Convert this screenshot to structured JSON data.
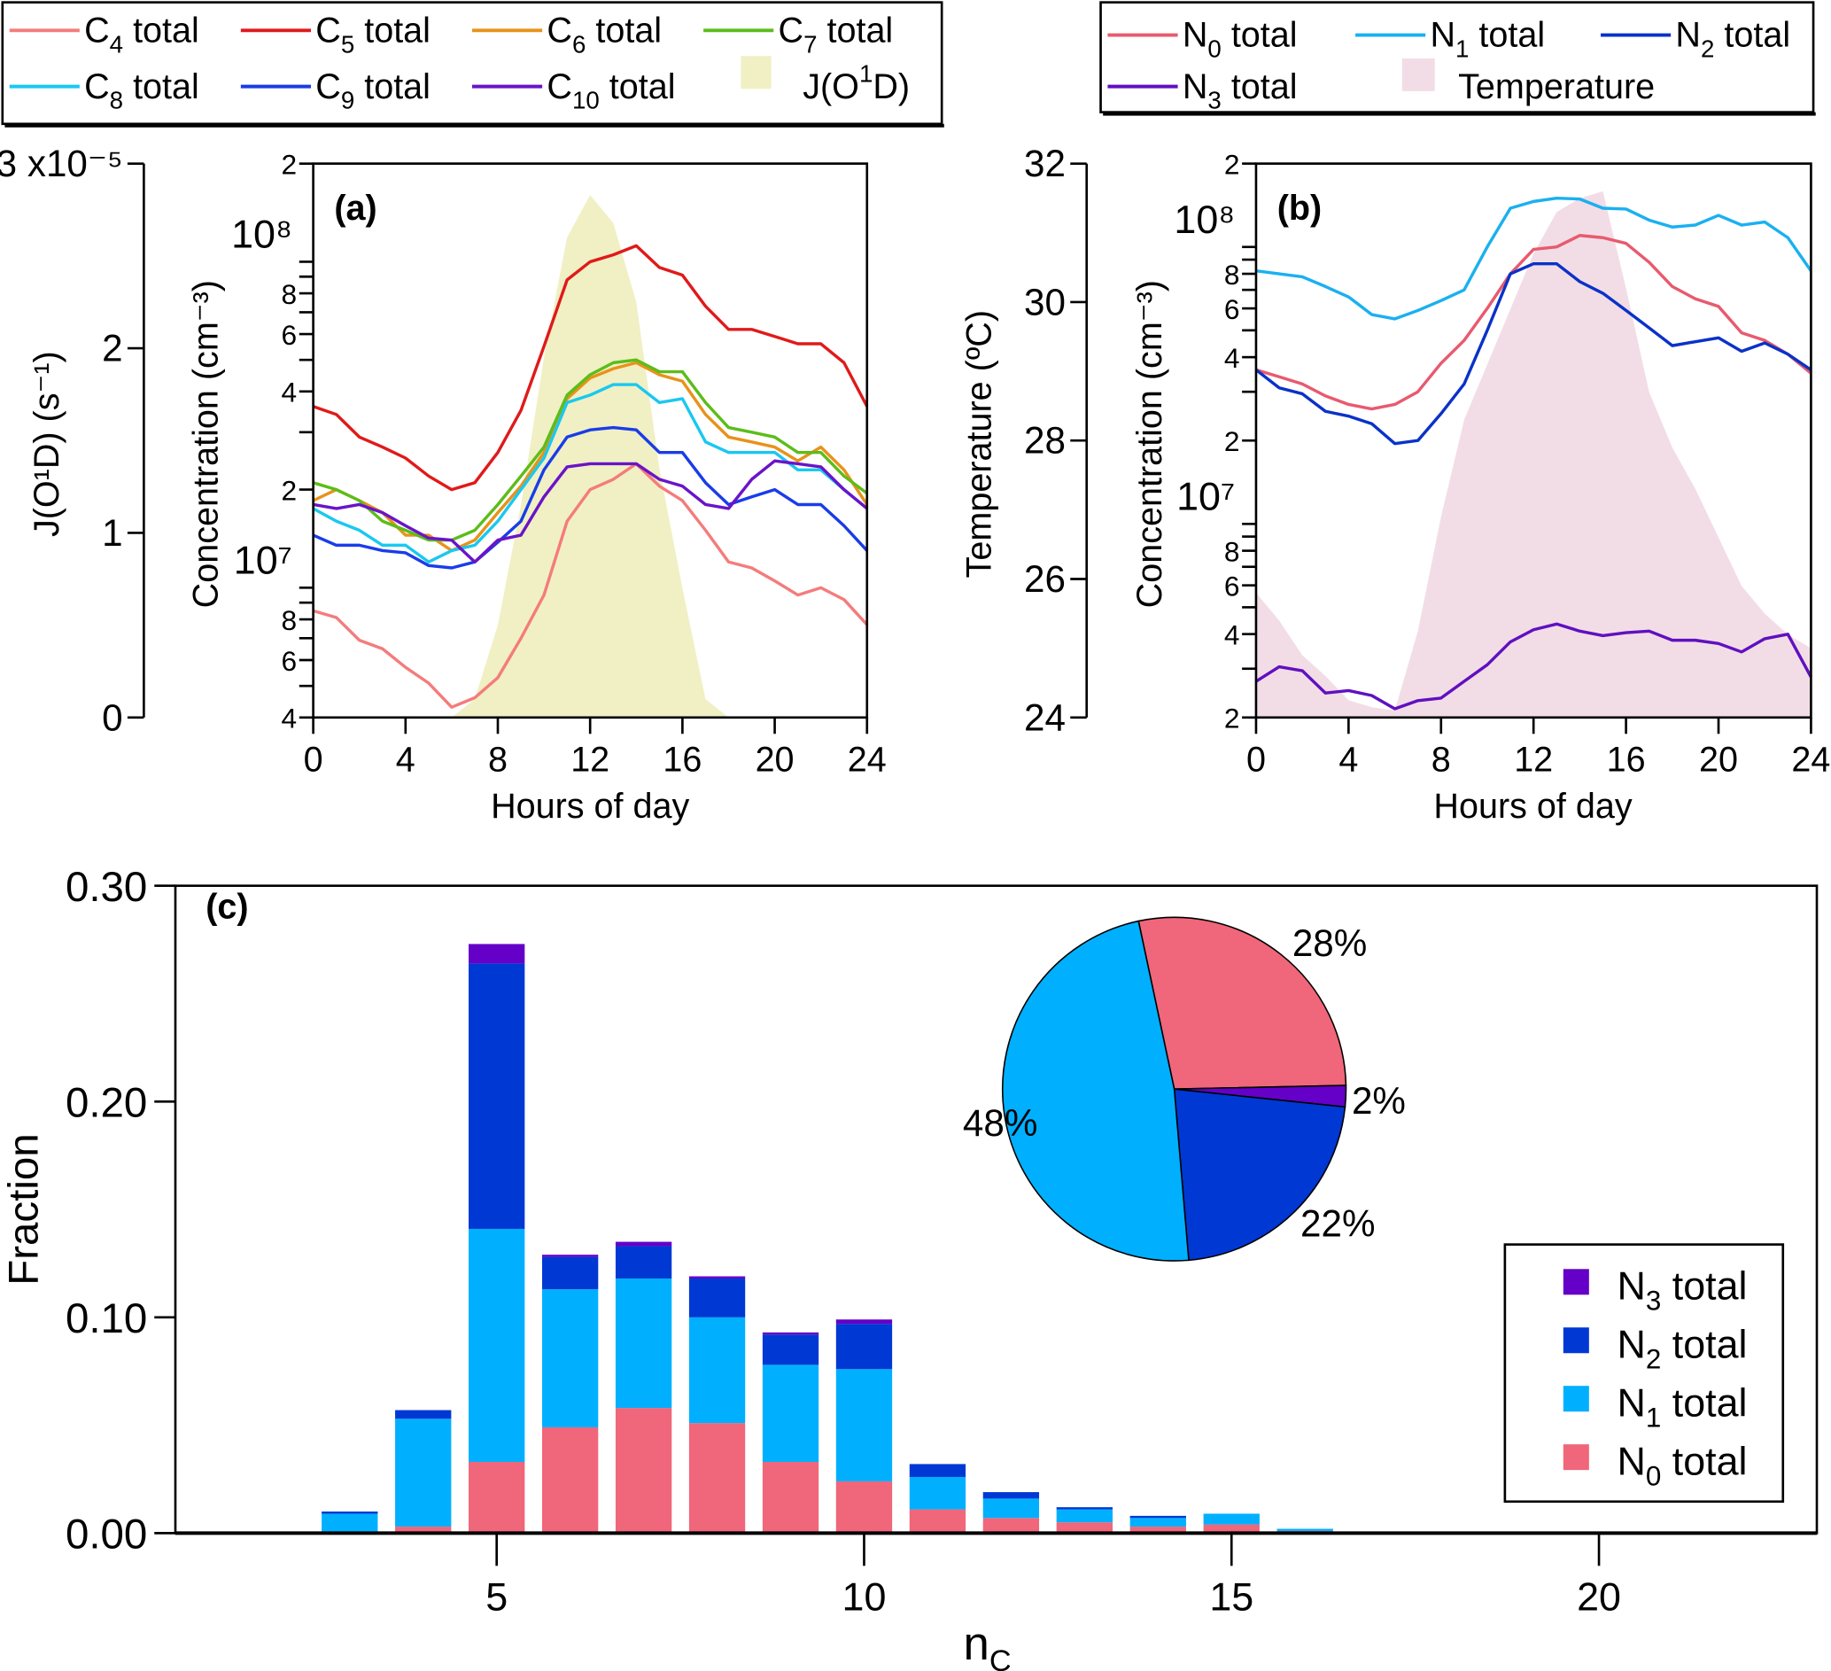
{
  "chart_data": [
    {
      "id": "a",
      "type": "line",
      "panel_label": "(a)",
      "xlabel": "Hours of day",
      "ylabel": "Concentration (cm⁻³)",
      "y_scale": "log",
      "ylim": [
        4000000,
        200000000
      ],
      "xlim": [
        0,
        24
      ],
      "x_ticks": [
        "0",
        "4",
        "8",
        "12",
        "16",
        "20",
        "24"
      ],
      "y_major_labels": [
        {
          "value": 10000000,
          "label": "10⁷"
        },
        {
          "value": 100000000,
          "label": "10⁸"
        }
      ],
      "y_minor_labels": [
        {
          "value": 4000000,
          "label": "4"
        },
        {
          "value": 6000000,
          "label": "6"
        },
        {
          "value": 8000000,
          "label": "8"
        },
        {
          "value": 20000000,
          "label": "2"
        },
        {
          "value": 40000000,
          "label": "4"
        },
        {
          "value": 60000000,
          "label": "6"
        },
        {
          "value": 80000000,
          "label": "8"
        },
        {
          "value": 200000000,
          "label": "2"
        }
      ],
      "secondary_axis": {
        "label": "J(O¹D) (s⁻¹)",
        "ylim": [
          0,
          3e-05
        ],
        "ticks": [
          {
            "value": 0,
            "label": "0"
          },
          {
            "value": 1e-05,
            "label": "1"
          },
          {
            "value": 2e-05,
            "label": "2"
          },
          {
            "value": 3e-05,
            "label": "3 x10⁻⁵"
          }
        ]
      },
      "x": [
        0,
        1,
        2,
        3,
        4,
        5,
        6,
        7,
        8,
        9,
        10,
        11,
        12,
        13,
        14,
        15,
        16,
        17,
        18,
        19,
        20,
        21,
        22,
        23,
        24
      ],
      "series": [
        {
          "name": "C4 total",
          "color": "#f47c7c",
          "values": [
            8500000.0,
            8100000.0,
            6900000.0,
            6500000.0,
            5700000.0,
            5100000.0,
            4300000.0,
            4600000.0,
            5300000.0,
            7000000.0,
            9500000.0,
            16000000.0,
            20000000.0,
            21500000.0,
            24000000.0,
            20500000.0,
            18500000.0,
            15000000.0,
            12000000.0,
            11500000.0,
            10500000.0,
            9500000.0,
            10000000.0,
            9200000.0,
            7700000.0
          ]
        },
        {
          "name": "C5 total",
          "color": "#e01a1a",
          "values": [
            36000000.0,
            34000000.0,
            29000000.0,
            27000000.0,
            25000000.0,
            22000000.0,
            20000000.0,
            21000000.0,
            26000000.0,
            35000000.0,
            55000000.0,
            88000000.0,
            100000000.0,
            105000000.0,
            112000000.0,
            96000000.0,
            91000000.0,
            73000000.0,
            62000000.0,
            62000000.0,
            59000000.0,
            56000000.0,
            56000000.0,
            49000000.0,
            36000000.0
          ]
        },
        {
          "name": "C6 total",
          "color": "#e8921a",
          "values": [
            18500000.0,
            20000000.0,
            18500000.0,
            17000000.0,
            14500000.0,
            14500000.0,
            13000000.0,
            14000000.0,
            17000000.0,
            20500000.0,
            26000000.0,
            38000000.0,
            44000000.0,
            47000000.0,
            49000000.0,
            45000000.0,
            43000000.0,
            34000000.0,
            29000000.0,
            28000000.0,
            27000000.0,
            24500000.0,
            27000000.0,
            23000000.0,
            18000000.0
          ]
        },
        {
          "name": "C7 total",
          "color": "#5cbd1a",
          "values": [
            21000000.0,
            20000000.0,
            18500000.0,
            16000000.0,
            15000000.0,
            14000000.0,
            14000000.0,
            15000000.0,
            18000000.0,
            22000000.0,
            27000000.0,
            39000000.0,
            45000000.0,
            49000000.0,
            50000000.0,
            46000000.0,
            46000000.0,
            37000000.0,
            31000000.0,
            30000000.0,
            29000000.0,
            26000000.0,
            26000000.0,
            22000000.0,
            19500000.0
          ]
        },
        {
          "name": "C8 total",
          "color": "#1ac8f0",
          "values": [
            17500000.0,
            16000000.0,
            15000000.0,
            13500000.0,
            13500000.0,
            12000000.0,
            13000000.0,
            13500000.0,
            16000000.0,
            20000000.0,
            25000000.0,
            37000000.0,
            39000000.0,
            42000000.0,
            42000000.0,
            37000000.0,
            38000000.0,
            28000000.0,
            26000000.0,
            26000000.0,
            26000000.0,
            23000000.0,
            23000000.0,
            20000000.0,
            17500000.0
          ]
        },
        {
          "name": "C9 total",
          "color": "#1a3ce8",
          "values": [
            14500000.0,
            13500000.0,
            13500000.0,
            13000000.0,
            12800000.0,
            11700000.0,
            11500000.0,
            12000000.0,
            13800000.0,
            16000000.0,
            23000000.0,
            29000000.0,
            30500000.0,
            31000000.0,
            30500000.0,
            26000000.0,
            26000000.0,
            21000000.0,
            18000000.0,
            19000000.0,
            20000000.0,
            18000000.0,
            18000000.0,
            15500000.0,
            13000000.0
          ]
        },
        {
          "name": "C10 total",
          "color": "#6a14c8",
          "values": [
            18000000.0,
            17500000.0,
            18000000.0,
            17000000.0,
            15500000.0,
            14200000.0,
            14000000.0,
            12000000.0,
            14000000.0,
            14500000.0,
            19000000.0,
            23500000.0,
            24000000.0,
            24000000.0,
            24000000.0,
            21500000.0,
            20500000.0,
            18000000.0,
            17500000.0,
            21500000.0,
            24500000.0,
            24000000.0,
            23500000.0,
            20000000.0,
            17500000.0
          ]
        }
      ],
      "area": {
        "name": "J(O1D)",
        "color": "#f0f0c4",
        "x": [
          6,
          7,
          8,
          9,
          10,
          11,
          12,
          13,
          14,
          15,
          16,
          17,
          18
        ],
        "values": [
          0,
          1e-06,
          5e-06,
          1.15e-05,
          1.95e-05,
          2.6e-05,
          2.83e-05,
          2.68e-05,
          2.25e-05,
          1.35e-05,
          7e-06,
          1e-06,
          0
        ]
      },
      "legend": {
        "placement": "top-left (outside)",
        "entries": [
          {
            "label": "C",
            "sub": "4",
            "suffix": " total",
            "kind": "line",
            "color": "#f47c7c"
          },
          {
            "label": "C",
            "sub": "5",
            "suffix": " total",
            "kind": "line",
            "color": "#e01a1a"
          },
          {
            "label": "C",
            "sub": "6",
            "suffix": " total",
            "kind": "line",
            "color": "#e8921a"
          },
          {
            "label": "C",
            "sub": "7",
            "suffix": " total",
            "kind": "line",
            "color": "#5cbd1a"
          },
          {
            "label": "C",
            "sub": "8",
            "suffix": " total",
            "kind": "line",
            "color": "#1ac8f0"
          },
          {
            "label": "C",
            "sub": "9",
            "suffix": " total",
            "kind": "line",
            "color": "#1a3ce8"
          },
          {
            "label": "C",
            "sub": "10",
            "suffix": " total",
            "kind": "line",
            "color": "#6a14c8"
          },
          {
            "label": "J(O",
            "sup": "1",
            "suffix": "D)",
            "kind": "area",
            "color": "#f0f0c4"
          }
        ]
      }
    },
    {
      "id": "b",
      "type": "line",
      "panel_label": "(b)",
      "xlabel": "Hours of day",
      "ylabel": "Concentration (cm⁻³)",
      "y_scale": "log",
      "ylim": [
        2000000,
        200000000
      ],
      "xlim": [
        0,
        24
      ],
      "x_ticks": [
        "0",
        "4",
        "8",
        "12",
        "16",
        "20",
        "24"
      ],
      "y_major_labels": [
        {
          "value": 10000000,
          "label": "10⁷"
        },
        {
          "value": 100000000,
          "label": "10⁸"
        }
      ],
      "y_minor_labels": [
        {
          "value": 2000000,
          "label": "2"
        },
        {
          "value": 4000000,
          "label": "4"
        },
        {
          "value": 6000000,
          "label": "6"
        },
        {
          "value": 8000000,
          "label": "8"
        },
        {
          "value": 20000000,
          "label": "2"
        },
        {
          "value": 40000000,
          "label": "4"
        },
        {
          "value": 60000000,
          "label": "6"
        },
        {
          "value": 80000000,
          "label": "8"
        },
        {
          "value": 200000000,
          "label": "2"
        }
      ],
      "secondary_axis": {
        "label": "Temperature  (ºC)",
        "ylim": [
          24,
          32
        ],
        "ticks": [
          {
            "value": 24,
            "label": "24"
          },
          {
            "value": 26,
            "label": "26"
          },
          {
            "value": 28,
            "label": "28"
          },
          {
            "value": 30,
            "label": "30"
          },
          {
            "value": 32,
            "label": "32"
          }
        ]
      },
      "x": [
        0,
        1,
        2,
        3,
        4,
        5,
        6,
        7,
        8,
        9,
        10,
        11,
        12,
        13,
        14,
        15,
        16,
        17,
        18,
        19,
        20,
        21,
        22,
        23,
        24
      ],
      "series": [
        {
          "name": "N0 total",
          "color": "#e85a6e",
          "values": [
            36000000.0,
            34000000.0,
            32000000.0,
            29000000.0,
            27000000.0,
            26000000.0,
            27000000.0,
            30000000.0,
            38000000.0,
            46000000.0,
            60000000.0,
            80000000.0,
            98000000.0,
            100000000.0,
            110000000.0,
            108000000.0,
            103000000.0,
            88000000.0,
            72000000.0,
            65000000.0,
            61000000.0,
            49000000.0,
            46000000.0,
            41000000.0,
            35000000.0
          ]
        },
        {
          "name": "N1 total",
          "color": "#1ab0f0",
          "values": [
            82000000.0,
            80000000.0,
            78000000.0,
            72000000.0,
            66000000.0,
            57000000.0,
            55000000.0,
            59000000.0,
            64000000.0,
            70000000.0,
            100000000.0,
            138000000.0,
            146000000.0,
            150000000.0,
            149000000.0,
            138000000.0,
            137000000.0,
            125000000.0,
            118000000.0,
            120000000.0,
            130000000.0,
            120000000.0,
            123000000.0,
            108000000.0,
            82000000.0
          ]
        },
        {
          "name": "N2 total",
          "color": "#0a32c8",
          "values": [
            36000000.0,
            31000000.0,
            29500000.0,
            25500000.0,
            24500000.0,
            23000000.0,
            19500000.0,
            20000000.0,
            25000000.0,
            32000000.0,
            50000000.0,
            80000000.0,
            87000000.0,
            87000000.0,
            75000000.0,
            68000000.0,
            59000000.0,
            51000000.0,
            44000000.0,
            45500000.0,
            47000000.0,
            42000000.0,
            45000000.0,
            41000000.0,
            36000000.0
          ]
        },
        {
          "name": "N3 total",
          "color": "#6010c0",
          "values": [
            2700000.0,
            3050000.0,
            2950000.0,
            2450000.0,
            2500000.0,
            2400000.0,
            2150000.0,
            2300000.0,
            2350000.0,
            2700000.0,
            3100000.0,
            3750000.0,
            4150000.0,
            4350000.0,
            4100000.0,
            3950000.0,
            4050000.0,
            4100000.0,
            3800000.0,
            3800000.0,
            3700000.0,
            3450000.0,
            3850000.0,
            4000000.0,
            2800000.0
          ]
        }
      ],
      "area": {
        "name": "Temperature",
        "color": "#f2dde6",
        "x": [
          0,
          1,
          2,
          3,
          4,
          5,
          6,
          7,
          8,
          9,
          10,
          11,
          12,
          13,
          14,
          15,
          16,
          17,
          18,
          19,
          20,
          21,
          22,
          23,
          24
        ],
        "values": [
          25.8,
          25.4,
          24.9,
          24.6,
          24.25,
          24.15,
          24.1,
          25.25,
          26.9,
          28.3,
          29.1,
          29.9,
          30.7,
          31.3,
          31.5,
          31.6,
          30.2,
          28.7,
          27.9,
          27.3,
          26.6,
          25.9,
          25.5,
          25.2,
          25.0
        ]
      },
      "legend": {
        "placement": "top-right (outside)",
        "entries": [
          {
            "label": "N",
            "sub": "0",
            "suffix": " total",
            "kind": "line",
            "color": "#e85a6e"
          },
          {
            "label": "N",
            "sub": "1",
            "suffix": " total",
            "kind": "line",
            "color": "#1ab0f0"
          },
          {
            "label": "N",
            "sub": "2",
            "suffix": " total",
            "kind": "line",
            "color": "#0a32c8"
          },
          {
            "label": "N",
            "sub": "3",
            "suffix": " total",
            "kind": "line",
            "color": "#6010c0"
          },
          {
            "label": "Temperature",
            "suffix": "",
            "kind": "area",
            "color": "#f2dde6"
          }
        ]
      }
    },
    {
      "id": "c",
      "type": "bar",
      "stacked": true,
      "panel_label": "(c)",
      "xlabel": "n",
      "xlabel_sub": "C",
      "ylabel": "Fraction",
      "ylim": [
        0,
        0.3
      ],
      "xlim": [
        1.0,
        23.6
      ],
      "x_ticks": [
        "5",
        "10",
        "15",
        "20"
      ],
      "y_ticks": [
        "0.00",
        "0.10",
        "0.20",
        "0.30"
      ],
      "categories": [
        3,
        4,
        5,
        6,
        7,
        8,
        9,
        10,
        11,
        12,
        13,
        14,
        15,
        16
      ],
      "series": [
        {
          "name": "N0 total",
          "color": "#f0667a",
          "values": [
            0.0,
            0.003,
            0.033,
            0.049,
            0.058,
            0.051,
            0.033,
            0.024,
            0.011,
            0.007,
            0.005,
            0.003,
            0.004,
            0.001
          ]
        },
        {
          "name": "N1 total",
          "color": "#00b0ff",
          "values": [
            0.009,
            0.05,
            0.108,
            0.064,
            0.06,
            0.049,
            0.045,
            0.052,
            0.015,
            0.009,
            0.006,
            0.004,
            0.005,
            0.001
          ]
        },
        {
          "name": "N2 total",
          "color": "#0038d4",
          "values": [
            0.001,
            0.004,
            0.123,
            0.015,
            0.015,
            0.018,
            0.014,
            0.021,
            0.006,
            0.003,
            0.001,
            0.001,
            0.0,
            0.0
          ]
        },
        {
          "name": "N3 total",
          "color": "#6400c8",
          "values": [
            0.0,
            0.0,
            0.009,
            0.001,
            0.002,
            0.001,
            0.001,
            0.002,
            0.0,
            0.0,
            0.0,
            0.0,
            0.0,
            0.0
          ]
        }
      ],
      "legend": {
        "placement": "bottom-right",
        "entries": [
          {
            "label": "N",
            "sub": "3",
            "suffix": " total",
            "color": "#6400c8"
          },
          {
            "label": "N",
            "sub": "2",
            "suffix": " total",
            "color": "#0038d4"
          },
          {
            "label": "N",
            "sub": "1",
            "suffix": " total",
            "color": "#00b0ff"
          },
          {
            "label": "N",
            "sub": "0",
            "suffix": " total",
            "color": "#f0667a"
          }
        ]
      },
      "inset_pie": {
        "type": "pie",
        "placement": "top-center",
        "slices": [
          {
            "name": "N0 total",
            "value": 28,
            "label": "28%",
            "color": "#f0667a"
          },
          {
            "name": "N3 total",
            "value": 2,
            "label": "2%",
            "color": "#6400c8"
          },
          {
            "name": "N2 total",
            "value": 22,
            "label": "22%",
            "color": "#0038d4"
          },
          {
            "name": "N1 total",
            "value": 48,
            "label": "48%",
            "color": "#00b0ff"
          }
        ]
      }
    }
  ]
}
